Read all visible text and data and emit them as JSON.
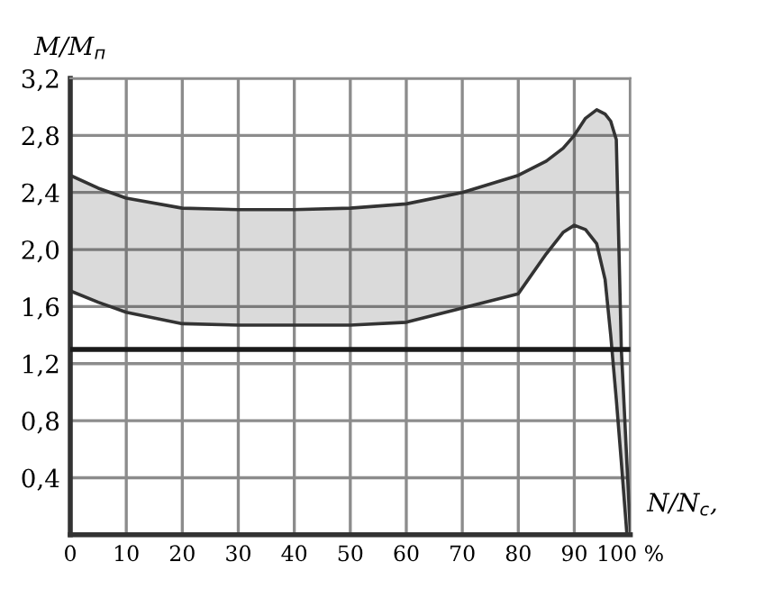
{
  "chart_data": {
    "type": "line",
    "xlabel": "N/N$_{c}$,",
    "ylabel": "M/M$_{п}$",
    "x": [
      0,
      5,
      10,
      20,
      30,
      40,
      50,
      60,
      70,
      80,
      85,
      88,
      90,
      92,
      94,
      95.5,
      96.5,
      97.5,
      98.4,
      99.4,
      100
    ],
    "series": [
      {
        "color": "#333333",
        "values": [
          2.52,
          2.43,
          2.36,
          2.29,
          2.28,
          2.28,
          2.29,
          2.32,
          2.4,
          2.52,
          2.62,
          2.71,
          2.8,
          2.92,
          2.98,
          2.95,
          2.9,
          2.77,
          1.3,
          0.5,
          0.03
        ],
        "lower": [
          1.71,
          1.63,
          1.56,
          1.48,
          1.47,
          1.47,
          1.47,
          1.49,
          1.59,
          1.69,
          1.97,
          2.12,
          2.17,
          2.14,
          2.04,
          1.79,
          1.4,
          0.95,
          0.51,
          0.0,
          0.0
        ],
        "upper": [
          2.52,
          2.43,
          2.36,
          2.29,
          2.28,
          2.28,
          2.29,
          2.32,
          2.4,
          2.52,
          2.62,
          2.71,
          2.8,
          2.92,
          2.98,
          2.95,
          2.9,
          2.77,
          1.3,
          0.5,
          0.03
        ]
      },
      {
        "color": "#333333",
        "values": [
          1.71,
          1.63,
          1.56,
          1.48,
          1.47,
          1.47,
          1.47,
          1.49,
          1.59,
          1.69,
          1.97,
          2.12,
          2.17,
          2.14,
          2.04,
          1.79,
          1.4,
          0.95,
          0.51,
          0.0,
          0.0
        ]
      }
    ],
    "ref_lines": [
      {
        "axis": "y",
        "value": 1.3,
        "label": null,
        "color": "#1a1a1a"
      }
    ],
    "xlim": [
      0,
      100
    ],
    "ylim": [
      0,
      3.2
    ],
    "xticks": [
      0,
      10,
      20,
      30,
      40,
      50,
      60,
      70,
      80,
      90,
      {
        "value": 100,
        "label": "100 %"
      }
    ],
    "yticks": [
      {
        "value": 0.4,
        "label": "0,4"
      },
      {
        "value": 0.8,
        "label": "0,8"
      },
      {
        "value": 1.2,
        "label": "1,2"
      },
      {
        "value": 1.6,
        "label": "1,6"
      },
      {
        "value": 2.0,
        "label": "2,0"
      },
      {
        "value": 2.4,
        "label": "2,4"
      },
      {
        "value": 2.8,
        "label": "2,8"
      },
      {
        "value": 3.2,
        "label": "3,2"
      }
    ],
    "grid": true,
    "legend": false,
    "marker": "none",
    "line_style": "solid"
  }
}
